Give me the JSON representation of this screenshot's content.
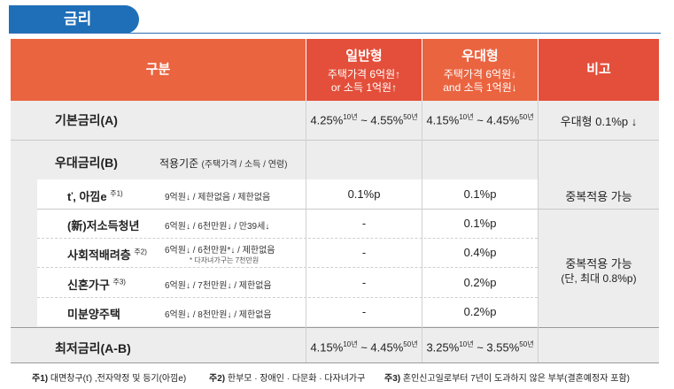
{
  "title": "금리",
  "header": {
    "gubun": "구분",
    "general": {
      "title": "일반형",
      "line1": "주택가격 6억원↑",
      "line2": "or 소득 1억원↑"
    },
    "preferential": {
      "title": "우대형",
      "line1": "주택가격 6억원↓",
      "line2": "and 소득 1억원↓"
    },
    "remarks": "비고"
  },
  "base_rate": {
    "label": "기본금리(A)",
    "general": {
      "from": "4.25%",
      "from_sup": "10년",
      "sep": " ~ ",
      "to": "4.55%",
      "to_sup": "50년"
    },
    "preferential": {
      "from": "4.15%",
      "from_sup": "10년",
      "sep": " ~ ",
      "to": "4.45%",
      "to_sup": "50년"
    },
    "remark": "우대형 0.1%p ↓"
  },
  "pref_section": {
    "label": "우대금리(B)",
    "criteria": "적용기준",
    "criteria_detail": "(주택가격 / 소득 / 연령)"
  },
  "pref_rows": [
    {
      "label": "ť, 아낌e",
      "sup": "주1)",
      "criteria": "9억원↓ / 제한없음 / 제한없음",
      "general": "0.1%p",
      "preferential": "0.1%p"
    },
    {
      "label": "(新)저소득청년",
      "sup": "",
      "criteria": "6억원↓ / 6천만원↓ / 만39세↓",
      "general": "-",
      "preferential": "0.1%p"
    },
    {
      "label": "사회적배려층",
      "sup": "주2)",
      "criteria": "6억원↓ / 6천만원*↓ / 제한없음",
      "criteria_note": "* 다자녀가구는 7천만원",
      "general": "-",
      "preferential": "0.4%p"
    },
    {
      "label": "신혼가구",
      "sup": "주3)",
      "criteria": "6억원↓ / 7천만원↓ / 제한없음",
      "general": "-",
      "preferential": "0.2%p"
    },
    {
      "label": "미분양주택",
      "sup": "",
      "criteria": "6억원↓ / 8천만원↓ / 제한없음",
      "general": "-",
      "preferential": "0.2%p"
    }
  ],
  "pref_remark1": "중복적용 가능",
  "pref_remark2_line1": "중복적용 가능",
  "pref_remark2_line2": "(단, 최대 0.8%p)",
  "min_rate": {
    "label": "최저금리(A-B)",
    "general": {
      "from": "4.15%",
      "from_sup": "10년",
      "sep": " ~ ",
      "to": "4.45%",
      "to_sup": "50년"
    },
    "preferential": {
      "from": "3.25%",
      "from_sup": "10년",
      "sep": " ~ ",
      "to": "3.55%",
      "to_sup": "50년"
    }
  },
  "footnotes": [
    {
      "key": "주1)",
      "text": " 대면창구(ť) ,전자약정 및 등기(아낌e)"
    },
    {
      "key": "주2)",
      "text": " 한부모 · 장애인 · 다문화 · 다자녀가구"
    },
    {
      "key": "주3)",
      "text": " 혼인신고일로부터 7년이 도과하지 않은 부부(결혼예정자 포함)"
    }
  ],
  "colors": {
    "title_blue": "#1f6fb8",
    "header_orange": "#ea6440",
    "header_red": "#e34f3a",
    "band_gray": "#ededed"
  }
}
